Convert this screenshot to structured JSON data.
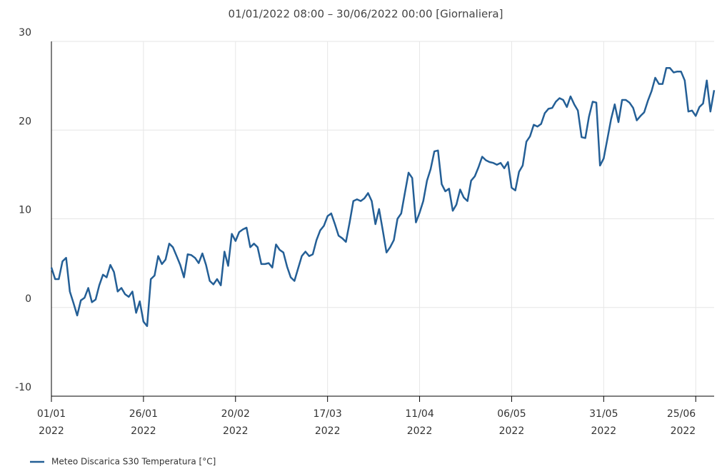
{
  "chart_data": {
    "type": "line",
    "title": "01/01/2022 08:00 – 30/06/2022 00:00 [Giornaliera]",
    "x": [
      "01/01/2022",
      "02/01/2022",
      "03/01/2022",
      "04/01/2022",
      "05/01/2022",
      "06/01/2022",
      "07/01/2022",
      "08/01/2022",
      "09/01/2022",
      "10/01/2022",
      "11/01/2022",
      "12/01/2022",
      "13/01/2022",
      "14/01/2022",
      "15/01/2022",
      "16/01/2022",
      "17/01/2022",
      "18/01/2022",
      "19/01/2022",
      "20/01/2022",
      "21/01/2022",
      "22/01/2022",
      "23/01/2022",
      "24/01/2022",
      "25/01/2022",
      "26/01/2022",
      "27/01/2022",
      "28/01/2022",
      "29/01/2022",
      "30/01/2022",
      "31/01/2022",
      "01/02/2022",
      "02/02/2022",
      "03/02/2022",
      "04/02/2022",
      "05/02/2022",
      "06/02/2022",
      "07/02/2022",
      "08/02/2022",
      "09/02/2022",
      "10/02/2022",
      "11/02/2022",
      "12/02/2022",
      "13/02/2022",
      "14/02/2022",
      "15/02/2022",
      "16/02/2022",
      "17/02/2022",
      "18/02/2022",
      "19/02/2022",
      "20/02/2022",
      "21/02/2022",
      "22/02/2022",
      "23/02/2022",
      "24/02/2022",
      "25/02/2022",
      "26/02/2022",
      "27/02/2022",
      "28/02/2022",
      "01/03/2022",
      "02/03/2022",
      "03/03/2022",
      "04/03/2022",
      "05/03/2022",
      "06/03/2022",
      "07/03/2022",
      "08/03/2022",
      "09/03/2022",
      "10/03/2022",
      "11/03/2022",
      "12/03/2022",
      "13/03/2022",
      "14/03/2022",
      "15/03/2022",
      "16/03/2022",
      "17/03/2022",
      "18/03/2022",
      "19/03/2022",
      "20/03/2022",
      "21/03/2022",
      "22/03/2022",
      "23/03/2022",
      "24/03/2022",
      "25/03/2022",
      "26/03/2022",
      "27/03/2022",
      "28/03/2022",
      "29/03/2022",
      "30/03/2022",
      "31/03/2022",
      "01/04/2022",
      "02/04/2022",
      "03/04/2022",
      "04/04/2022",
      "05/04/2022",
      "06/04/2022",
      "07/04/2022",
      "08/04/2022",
      "09/04/2022",
      "10/04/2022",
      "11/04/2022",
      "12/04/2022",
      "13/04/2022",
      "14/04/2022",
      "15/04/2022",
      "16/04/2022",
      "17/04/2022",
      "18/04/2022",
      "19/04/2022",
      "20/04/2022",
      "21/04/2022",
      "22/04/2022",
      "23/04/2022",
      "24/04/2022",
      "25/04/2022",
      "26/04/2022",
      "27/04/2022",
      "28/04/2022",
      "29/04/2022",
      "30/04/2022",
      "01/05/2022",
      "02/05/2022",
      "03/05/2022",
      "04/05/2022",
      "05/05/2022",
      "06/05/2022",
      "07/05/2022",
      "08/05/2022",
      "09/05/2022",
      "10/05/2022",
      "11/05/2022",
      "12/05/2022",
      "13/05/2022",
      "14/05/2022",
      "15/05/2022",
      "16/05/2022",
      "17/05/2022",
      "18/05/2022",
      "19/05/2022",
      "20/05/2022",
      "21/05/2022",
      "22/05/2022",
      "23/05/2022",
      "24/05/2022",
      "25/05/2022",
      "26/05/2022",
      "27/05/2022",
      "28/05/2022",
      "29/05/2022",
      "30/05/2022",
      "31/05/2022",
      "01/06/2022",
      "02/06/2022",
      "03/06/2022",
      "04/06/2022",
      "05/06/2022",
      "06/06/2022",
      "07/06/2022",
      "08/06/2022",
      "09/06/2022",
      "10/06/2022",
      "11/06/2022",
      "12/06/2022",
      "13/06/2022",
      "14/06/2022",
      "15/06/2022",
      "16/06/2022",
      "17/06/2022",
      "18/06/2022",
      "19/06/2022",
      "20/06/2022",
      "21/06/2022",
      "22/06/2022",
      "23/06/2022",
      "24/06/2022",
      "25/06/2022",
      "26/06/2022",
      "27/06/2022",
      "28/06/2022",
      "29/06/2022",
      "30/06/2022"
    ],
    "series": [
      {
        "name": "Meteo Discarica S30 Temperatura [°C]",
        "color": "#245f96",
        "values": [
          4.5,
          3.2,
          3.2,
          5.2,
          5.6,
          1.8,
          0.5,
          -0.9,
          0.8,
          1.1,
          2.2,
          0.6,
          0.9,
          2.5,
          3.7,
          3.4,
          4.8,
          4.0,
          1.8,
          2.2,
          1.5,
          1.2,
          1.8,
          -0.6,
          0.7,
          -1.6,
          -2.1,
          3.2,
          3.6,
          5.8,
          4.9,
          5.4,
          7.2,
          6.8,
          5.8,
          4.8,
          3.4,
          6.0,
          5.9,
          5.6,
          5.0,
          6.1,
          4.8,
          3.0,
          2.6,
          3.2,
          2.5,
          6.3,
          4.7,
          8.3,
          7.5,
          8.5,
          8.8,
          9.0,
          6.8,
          7.2,
          6.8,
          4.9,
          4.9,
          5.0,
          4.5,
          7.1,
          6.5,
          6.2,
          4.6,
          3.4,
          3.0,
          4.4,
          5.8,
          6.3,
          5.8,
          6.0,
          7.6,
          8.7,
          9.2,
          10.3,
          10.6,
          9.4,
          8.1,
          7.8,
          7.4,
          9.6,
          12.0,
          12.2,
          12.0,
          12.3,
          12.9,
          12.0,
          9.4,
          11.1,
          8.7,
          6.2,
          6.8,
          7.6,
          10.0,
          10.6,
          12.9,
          15.2,
          14.6,
          9.6,
          10.7,
          12.0,
          14.3,
          15.6,
          17.6,
          17.7,
          13.9,
          13.1,
          13.4,
          10.9,
          11.6,
          13.3,
          12.4,
          12.0,
          14.3,
          14.8,
          15.8,
          17.0,
          16.6,
          16.4,
          16.3,
          16.1,
          16.3,
          15.7,
          16.4,
          13.5,
          13.2,
          15.3,
          16.0,
          18.7,
          19.3,
          20.6,
          20.4,
          20.7,
          21.9,
          22.4,
          22.5,
          23.2,
          23.6,
          23.4,
          22.6,
          23.8,
          22.9,
          22.2,
          19.2,
          19.1,
          21.5,
          23.2,
          23.1,
          16.0,
          16.8,
          19.0,
          21.2,
          22.9,
          20.9,
          23.4,
          23.4,
          23.1,
          22.5,
          21.1,
          21.6,
          22.0,
          23.3,
          24.4,
          25.9,
          25.2,
          25.2,
          27.0,
          27.0,
          26.5,
          26.6,
          26.6,
          25.6,
          22.1,
          22.2,
          21.6,
          22.6,
          23.0,
          25.6,
          22.1,
          24.5
        ]
      }
    ],
    "ylim": [
      -10,
      30
    ],
    "yticks": [
      -10,
      0,
      10,
      20,
      30
    ],
    "xticks": [
      {
        "value": "01/01/2022",
        "label": [
          "01/01",
          "2022"
        ]
      },
      {
        "value": "26/01/2022",
        "label": [
          "26/01",
          "2022"
        ]
      },
      {
        "value": "20/02/2022",
        "label": [
          "20/02",
          "2022"
        ]
      },
      {
        "value": "17/03/2022",
        "label": [
          "17/03",
          "2022"
        ]
      },
      {
        "value": "11/04/2022",
        "label": [
          "11/04",
          "2022"
        ]
      },
      {
        "value": "06/05/2022",
        "label": [
          "06/05",
          "2022"
        ]
      },
      {
        "value": "31/05/2022",
        "label": [
          "31/05",
          "2022"
        ]
      },
      {
        "value": "25/06/2022",
        "label": [
          "25/06",
          "2022"
        ]
      }
    ],
    "grid": true
  }
}
